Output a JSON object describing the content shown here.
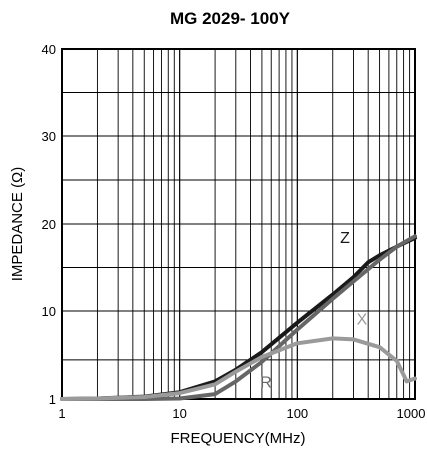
{
  "chart_data": {
    "type": "line",
    "title": "MG 2029-  100Y",
    "xlabel": "FREQUENCY(MHz)",
    "ylabel": "IMPEDANCE (Ω)",
    "x_scale": "log",
    "xlim": [
      1,
      1000
    ],
    "ylim": [
      1,
      40
    ],
    "y_scale": "piecewise-linear",
    "x_ticks": [
      1,
      10,
      100,
      1000
    ],
    "x_tick_labels": [
      "1",
      "10",
      "100",
      "1000"
    ],
    "y_ticks": [
      1,
      10,
      20,
      30,
      40
    ],
    "y_tick_labels": [
      "1",
      "10",
      "20",
      "30",
      "40"
    ],
    "grid": true,
    "series": [
      {
        "name": "Z",
        "color": "#1a1a1a",
        "points": [
          [
            1,
            1.0
          ],
          [
            2,
            1.05
          ],
          [
            5,
            1.25
          ],
          [
            10,
            1.7
          ],
          [
            20,
            2.8
          ],
          [
            30,
            4.0
          ],
          [
            50,
            5.8
          ],
          [
            100,
            8.8
          ],
          [
            200,
            11.9
          ],
          [
            300,
            13.9
          ],
          [
            400,
            15.6
          ],
          [
            500,
            16.4
          ],
          [
            700,
            17.4
          ],
          [
            1000,
            18.4
          ]
        ]
      },
      {
        "name": "R",
        "color": "#666666",
        "points": [
          [
            1,
            1.0
          ],
          [
            5,
            1.0
          ],
          [
            10,
            1.05
          ],
          [
            20,
            1.5
          ],
          [
            30,
            2.8
          ],
          [
            50,
            4.8
          ],
          [
            100,
            8.1
          ],
          [
            200,
            11.4
          ],
          [
            300,
            13.4
          ],
          [
            500,
            15.9
          ],
          [
            700,
            17.4
          ],
          [
            1000,
            18.6
          ]
        ]
      },
      {
        "name": "X",
        "color": "#9a9a9a",
        "points": [
          [
            1,
            1.0
          ],
          [
            2,
            1.05
          ],
          [
            5,
            1.2
          ],
          [
            10,
            1.6
          ],
          [
            20,
            2.5
          ],
          [
            30,
            3.8
          ],
          [
            50,
            5.3
          ],
          [
            100,
            6.7
          ],
          [
            200,
            7.2
          ],
          [
            300,
            7.1
          ],
          [
            500,
            6.3
          ],
          [
            700,
            4.9
          ],
          [
            850,
            2.8
          ],
          [
            1000,
            3.1
          ]
        ]
      }
    ],
    "annotations": [
      "Z",
      "R",
      "X"
    ]
  }
}
